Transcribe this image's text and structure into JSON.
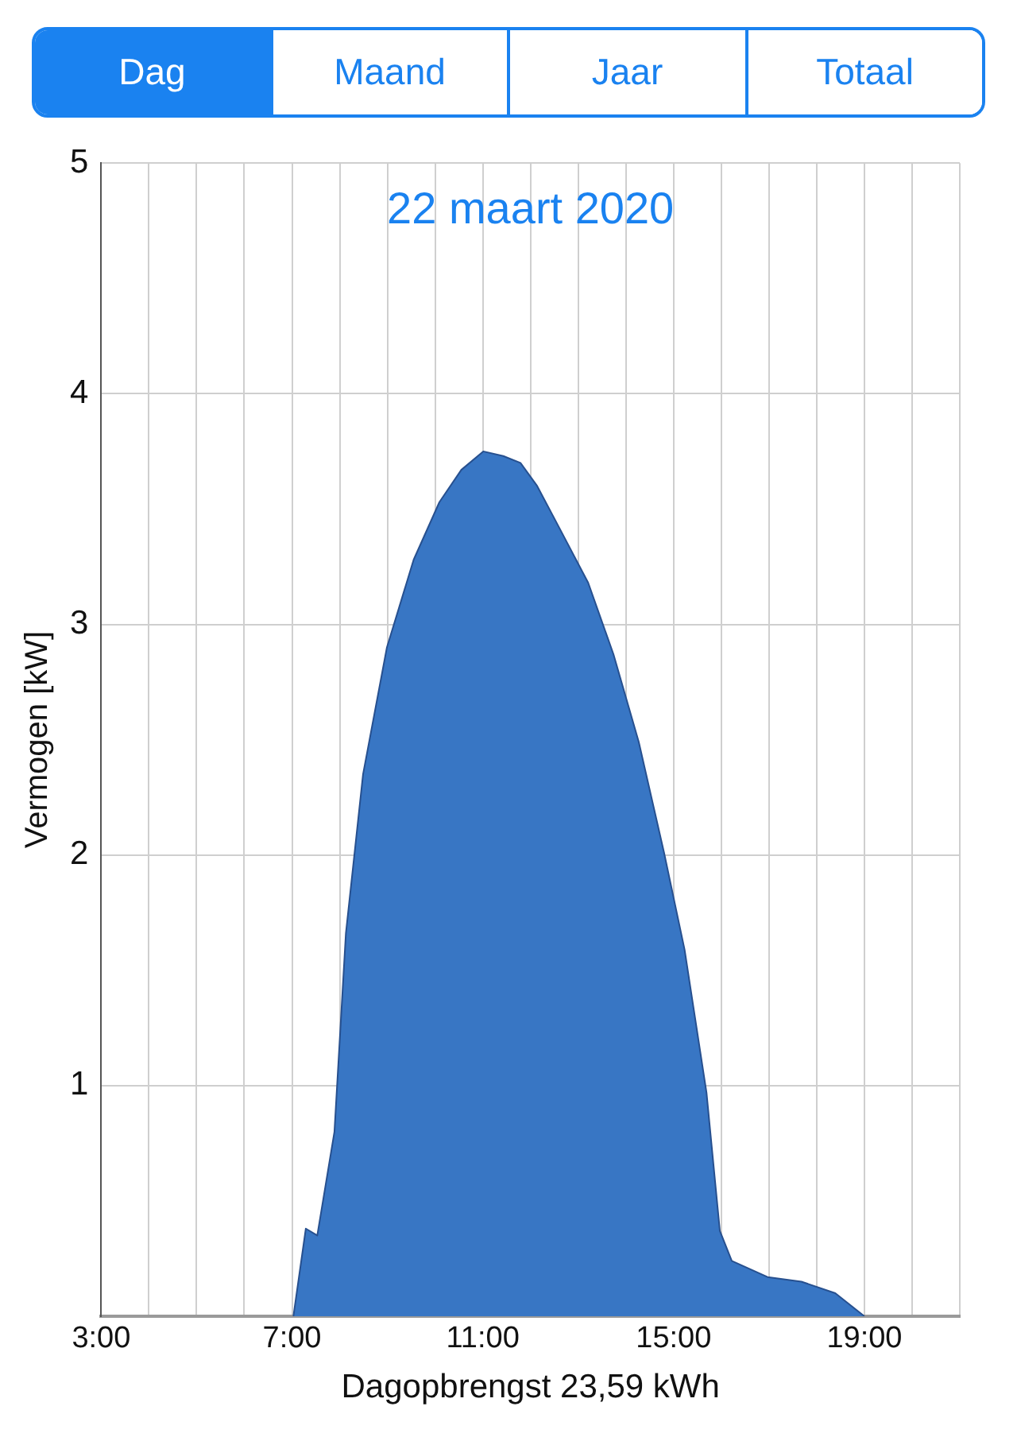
{
  "chart_data": {
    "type": "area",
    "title": "22 maart 2020",
    "xlabel": "Dagopbrengst 23,59 kWh",
    "ylabel": "Vermogen [kW]",
    "annotations": [
      "Dag",
      "Maand",
      "Jaar",
      "Totaal"
    ],
    "x": [
      7.03,
      7.29,
      7.53,
      7.89,
      8.13,
      8.49,
      8.99,
      9.55,
      10.09,
      10.55,
      11.01,
      11.43,
      11.79,
      12.14,
      12.6,
      13.21,
      13.74,
      14.27,
      14.8,
      15.23,
      15.69,
      15.97,
      16.22,
      16.97,
      17.68,
      18.39,
      19.0
    ],
    "series": [
      {
        "color": "#3876c4",
        "values": [
          0,
          0.38,
          0.35,
          0.8,
          1.66,
          2.35,
          2.9,
          3.28,
          3.53,
          3.67,
          3.75,
          3.73,
          3.7,
          3.6,
          3.42,
          3.18,
          2.87,
          2.49,
          2.01,
          1.59,
          0.97,
          0.37,
          0.24,
          0.17,
          0.15,
          0.1,
          0
        ]
      }
    ],
    "xlim": [
      3,
      21
    ],
    "xticks": [
      {
        "value": 3,
        "label": "3:00"
      },
      {
        "value": 4,
        "label": null
      },
      {
        "value": 5,
        "label": null
      },
      {
        "value": 6,
        "label": null
      },
      {
        "value": 7,
        "label": "7:00"
      },
      {
        "value": 8,
        "label": null
      },
      {
        "value": 9,
        "label": null
      },
      {
        "value": 10,
        "label": null
      },
      {
        "value": 11,
        "label": "11:00"
      },
      {
        "value": 12,
        "label": null
      },
      {
        "value": 13,
        "label": null
      },
      {
        "value": 14,
        "label": null
      },
      {
        "value": 15,
        "label": "15:00"
      },
      {
        "value": 16,
        "label": null
      },
      {
        "value": 17,
        "label": null
      },
      {
        "value": 18,
        "label": null
      },
      {
        "value": 19,
        "label": "19:00"
      },
      {
        "value": 20,
        "label": null
      },
      {
        "value": 21,
        "label": null
      }
    ],
    "ylim": [
      0,
      5
    ],
    "yticks": [
      1,
      2,
      3,
      4,
      5
    ],
    "grid": true,
    "legend": false,
    "marker": "none",
    "line_style": "solid"
  }
}
